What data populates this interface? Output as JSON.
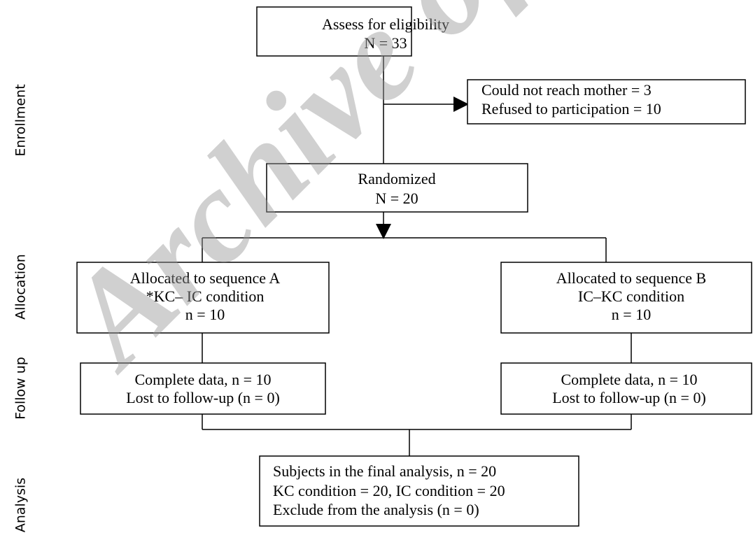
{
  "stages": [
    "Enrollment",
    "Allocation",
    "Follow up",
    "Analysis"
  ],
  "nodes": [
    {
      "lines": [
        "Assess for eligibility",
        "N = 33"
      ]
    },
    {
      "lines": [
        "Could not reach mother = 3",
        "Refused to participation = 10"
      ]
    },
    {
      "lines": [
        "Randomized",
        "N = 20"
      ]
    },
    {
      "lines": [
        "Allocated to sequence A",
        "*KC– IC condition",
        "n = 10"
      ]
    },
    {
      "lines": [
        "Allocated to sequence B",
        "IC–KC condition",
        "n = 10"
      ]
    },
    {
      "lines": [
        "Complete data, n = 10",
        "Lost to follow-up (n = 0)"
      ]
    },
    {
      "lines": [
        "Complete data, n = 10",
        "Lost to follow-up (n = 0)"
      ]
    },
    {
      "lines": [
        "Subjects in the final analysis, n = 20",
        "KC condition = 20, IC condition = 20",
        "Exclude from the analysis (n = 0)"
      ]
    }
  ],
  "watermark": "Archive of"
}
